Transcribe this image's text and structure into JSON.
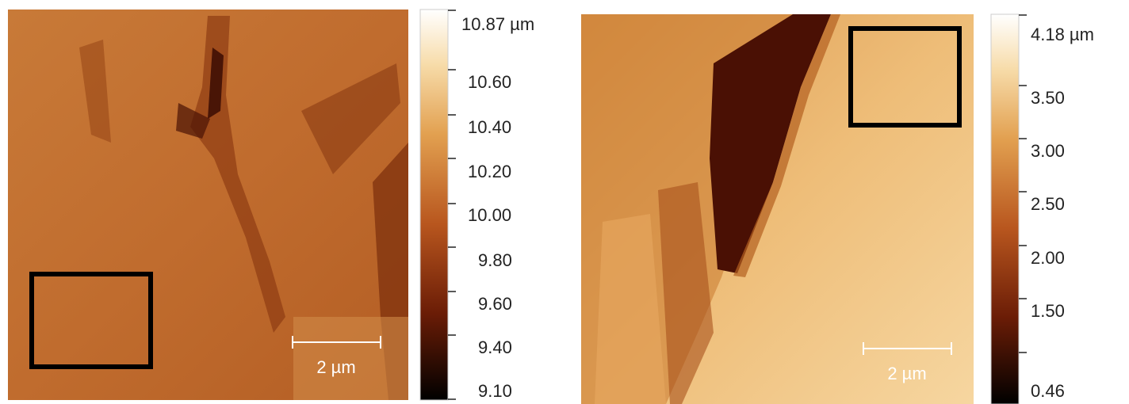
{
  "panels": [
    {
      "scale_bar": "2 µm",
      "colorbar": {
        "ticks": [
          "10.87 µm",
          "10.60",
          "10.40",
          "10.20",
          "10.00",
          "9.80",
          "9.60",
          "9.40",
          "9.10"
        ]
      }
    },
    {
      "scale_bar": "2 µm",
      "colorbar": {
        "ticks": [
          "4.18 µm",
          "3.50",
          "3.00",
          "2.50",
          "2.00",
          "1.50",
          "0.46"
        ]
      }
    }
  ]
}
